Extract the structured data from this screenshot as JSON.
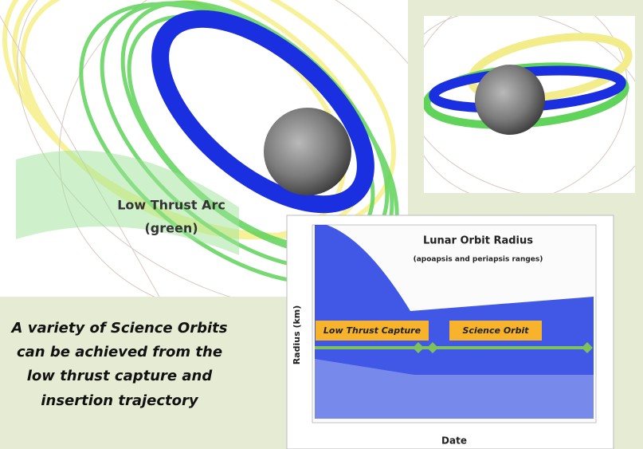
{
  "orbit_view": {
    "label": "Low Thrust Arc",
    "label_note": "(green)"
  },
  "chart_panel": {
    "title": "Lunar Orbit Radius",
    "subtitle": "(apoapsis and periapsis ranges)",
    "y_axis_label": "Radius (km)",
    "x_axis_label": "Date",
    "phase_labels": [
      "Low Thrust Capture",
      "Science Orbit"
    ]
  },
  "caption": {
    "lines": [
      "A variety of Science Orbits",
      "can be achieved from the",
      "low thrust capture and",
      "insertion trajectory"
    ]
  }
}
